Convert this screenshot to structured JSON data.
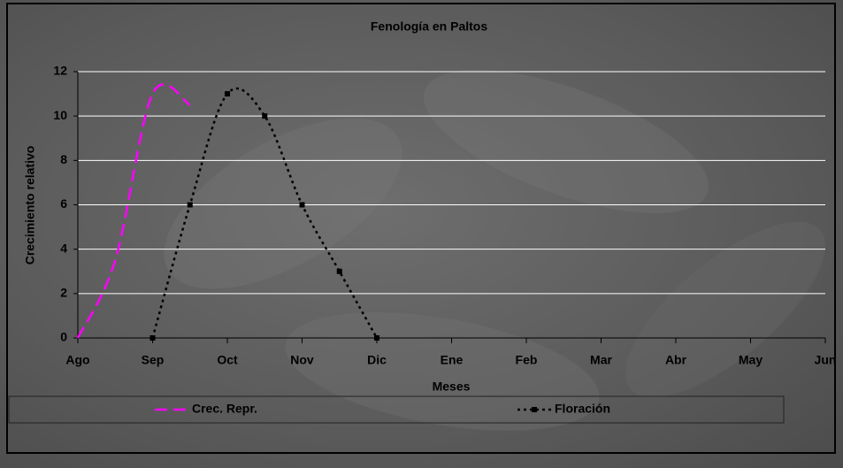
{
  "chart_data": {
    "type": "line",
    "title": "Fenología en Paltos",
    "x_label": "Meses",
    "y_label": "Crecimiento relativo",
    "xlim": [
      0,
      10
    ],
    "xticks": [
      {
        "value": 0,
        "label": "Ago"
      },
      {
        "value": 1,
        "label": "Sep"
      },
      {
        "value": 2,
        "label": "Oct"
      },
      {
        "value": 3,
        "label": "Nov"
      },
      {
        "value": 4,
        "label": "Dic"
      },
      {
        "value": 5,
        "label": "Ene"
      },
      {
        "value": 6,
        "label": "Feb"
      },
      {
        "value": 7,
        "label": "Mar"
      },
      {
        "value": 8,
        "label": "Abr"
      },
      {
        "value": 9,
        "label": "May"
      },
      {
        "value": 10,
        "label": "Jun"
      }
    ],
    "ylim": [
      0,
      12
    ],
    "yticks": [
      0,
      2,
      4,
      6,
      8,
      10,
      12
    ],
    "grid": true,
    "legend_position": "bottom",
    "series": [
      {
        "name": "Crec. Repr.",
        "color": "#ff00ff",
        "dash": "dashed",
        "markers": false,
        "x": [
          0,
          0.5,
          1,
          1.5
        ],
        "values": [
          0,
          3.5,
          11,
          10.5
        ]
      },
      {
        "name": "Floración",
        "color": "#000000",
        "dash": "dotted",
        "markers": true,
        "x": [
          1,
          1.5,
          2,
          2.5,
          3,
          3.5,
          4
        ],
        "values": [
          0,
          6,
          11,
          10,
          6,
          3,
          0
        ]
      }
    ]
  }
}
